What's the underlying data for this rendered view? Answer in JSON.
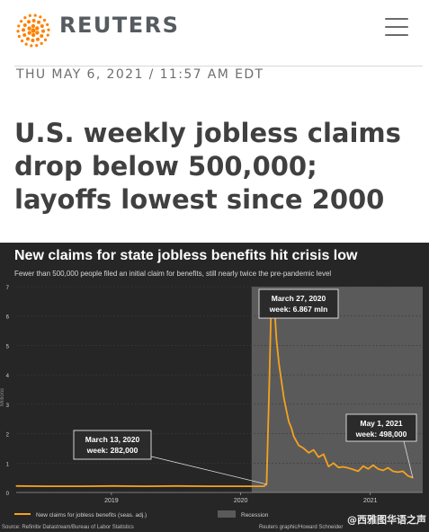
{
  "header": {
    "brand": "REUTERS",
    "menu_icon": "hamburger-menu-icon",
    "logo_icon": "reuters-dot-logo-icon",
    "brand_color": "#FF8000"
  },
  "article": {
    "dateline": "THU MAY 6, 2021 / 11:57 AM EDT",
    "headline": "U.S. weekly jobless claims drop below 500,000; layoffs lowest since 2000"
  },
  "chart_data": {
    "type": "line",
    "title": "New claims for state jobless benefits hit crisis low",
    "subtitle": "Fewer than 500,000 people filed an initial claim for benefits, still nearly twice the pre-pandemic level",
    "ylabel": "Millions",
    "ylim": [
      0,
      7
    ],
    "yticks": [
      "0",
      "1",
      "2",
      "3",
      "4",
      "5",
      "6",
      "7"
    ],
    "xticks": [
      {
        "label": "2019",
        "date": "2019-01-01"
      },
      {
        "label": "2020",
        "date": "2020-01-01"
      },
      {
        "label": "2021",
        "date": "2021-01-01"
      }
    ],
    "xlim": [
      "2018-04-07",
      "2021-05-29"
    ],
    "recession": {
      "start": "2020-02-01",
      "end": "2021-05-29",
      "label": "Recession"
    },
    "series": [
      {
        "name": "New claims for jobless benefits (seas. adj.)",
        "color": "#F5A21E",
        "x": [
          "2018-04-07",
          "2018-07-07",
          "2018-10-06",
          "2019-01-05",
          "2019-04-06",
          "2019-07-06",
          "2019-10-05",
          "2020-01-04",
          "2020-02-15",
          "2020-03-07",
          "2020-03-14",
          "2020-03-21",
          "2020-03-28",
          "2020-04-04",
          "2020-04-11",
          "2020-04-18",
          "2020-04-25",
          "2020-05-02",
          "2020-05-09",
          "2020-05-16",
          "2020-05-23",
          "2020-05-30",
          "2020-06-13",
          "2020-06-27",
          "2020-07-11",
          "2020-07-25",
          "2020-08-08",
          "2020-08-22",
          "2020-09-05",
          "2020-09-19",
          "2020-10-03",
          "2020-10-17",
          "2020-10-31",
          "2020-11-14",
          "2020-11-28",
          "2020-12-12",
          "2020-12-26",
          "2021-01-09",
          "2021-01-23",
          "2021-02-06",
          "2021-02-20",
          "2021-03-06",
          "2021-03-20",
          "2021-04-03",
          "2021-04-17",
          "2021-05-01"
        ],
        "y": [
          0.22,
          0.21,
          0.21,
          0.22,
          0.21,
          0.22,
          0.21,
          0.21,
          0.21,
          0.21,
          0.28,
          3.3,
          6.867,
          6.6,
          5.2,
          4.4,
          3.8,
          3.2,
          2.8,
          2.4,
          2.2,
          1.9,
          1.6,
          1.5,
          1.35,
          1.45,
          1.2,
          1.3,
          0.88,
          1.0,
          0.85,
          0.87,
          0.83,
          0.78,
          0.72,
          0.9,
          0.8,
          0.93,
          0.8,
          0.75,
          0.84,
          0.72,
          0.69,
          0.72,
          0.57,
          0.498
        ]
      }
    ],
    "annotations": [
      {
        "title": "March 27, 2020",
        "text": "week: 6.867 mln",
        "x": "2020-03-28",
        "y": 6.867
      },
      {
        "title": "March 13, 2020",
        "text": "week: 282,000",
        "x": "2020-03-14",
        "y": 0.28
      },
      {
        "title": "May 1, 2021",
        "text": "week: 498,000",
        "x": "2021-05-01",
        "y": 0.498
      }
    ],
    "legend": {
      "placement": "bottom-left",
      "line_label": "New claims for jobless benefits (seas. adj.)",
      "area_label": "Recession"
    },
    "grid": true,
    "source": "Source: Refinitiv Datastream/Bureau of Labor Statistics",
    "credit": "Reuters graphic/Howard Schneider",
    "colors": {
      "background": "#262626",
      "recession": "#5a5a5a",
      "line": "#F5A21E",
      "grid": "#3a3a3a",
      "title": "#ffffff",
      "subtitle": "#d8d8d8",
      "tick": "#cfcfcf"
    }
  },
  "watermark": "@西雅图华语之声"
}
